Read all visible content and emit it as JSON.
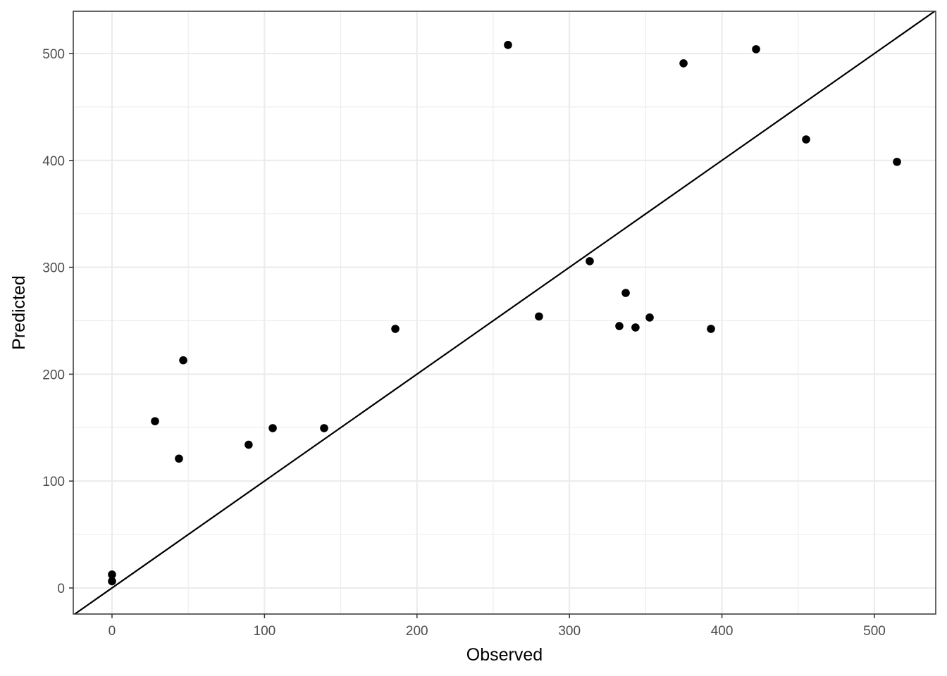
{
  "chart_data": {
    "type": "scatter",
    "x_label": "Observed",
    "y_label": "Predicted",
    "x": [
      0,
      0,
      28.2,
      43.9,
      46.7,
      89.6,
      105.4,
      139.1,
      185.8,
      259.7,
      280,
      313.3,
      332.7,
      336.9,
      343.3,
      352.6,
      374.8,
      392.8,
      422.4,
      455.2,
      514.8
    ],
    "values": [
      12.5,
      6.3,
      156,
      121,
      213,
      134,
      149.5,
      149.5,
      242.4,
      508,
      254,
      305.7,
      245,
      276,
      243.7,
      253,
      490.8,
      242.4,
      504,
      419.6,
      398.6
    ],
    "color": "#000000",
    "xlim": [
      -25.4,
      540.2
    ],
    "ylim": [
      -24.4,
      539.5
    ],
    "xticks": [
      0,
      100,
      200,
      300,
      400,
      500
    ],
    "yticks": [
      0,
      100,
      200,
      300,
      400,
      500
    ],
    "x_minor_grid": [
      50,
      150,
      250,
      350,
      450
    ],
    "y_minor_grid": [
      50,
      150,
      250,
      350,
      450
    ],
    "grid": true,
    "reference_line": {
      "slope": 1,
      "intercept": 0
    }
  }
}
